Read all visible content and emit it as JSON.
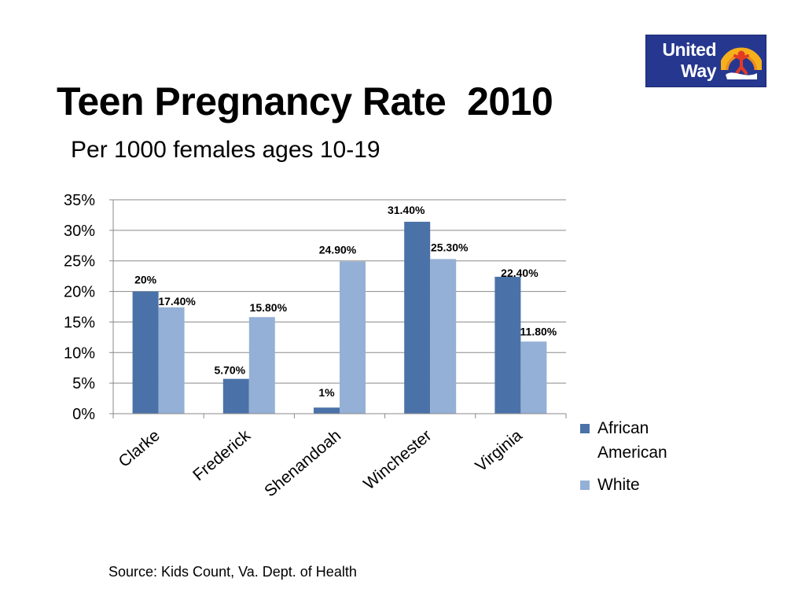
{
  "title": "Teen Pregnancy Rate  2010",
  "subtitle": "Per 1000 females ages 10-19",
  "logo": {
    "line1": "United",
    "line2": "Way",
    "background": "#26378f"
  },
  "source": "Source: Kids Count, Va. Dept. of Health",
  "chart_data": {
    "type": "bar",
    "categories": [
      "Clarke",
      "Frederick",
      "Shenandoah",
      "Winchester",
      "Virginia"
    ],
    "series": [
      {
        "name": "African American",
        "color": "#4a72a8",
        "values": [
          20,
          5.7,
          1,
          31.4,
          22.4
        ],
        "labels": [
          "20%",
          "5.70%",
          "1%",
          "31.40%",
          "22.40%"
        ]
      },
      {
        "name": "White",
        "color": "#95b0d6",
        "values": [
          17.4,
          15.8,
          24.9,
          25.3,
          11.8
        ],
        "labels": [
          "17.40%",
          "15.80%",
          "24.90%",
          "25.30%",
          "11.80%"
        ]
      }
    ],
    "ylim": [
      0,
      35
    ],
    "yticks": [
      "0%",
      "5%",
      "10%",
      "15%",
      "20%",
      "25%",
      "30%",
      "35%"
    ],
    "grid": true,
    "legend": "right",
    "xlabel": "",
    "ylabel": ""
  }
}
